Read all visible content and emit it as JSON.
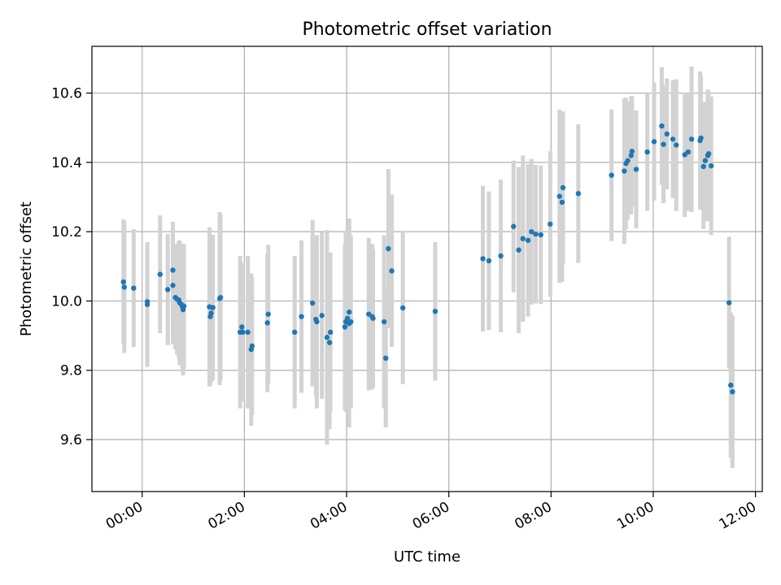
{
  "chart_data": {
    "type": "scatter",
    "title": "Photometric offset variation",
    "xlabel": "UTC time",
    "ylabel": "Photometric offset",
    "x_unit": "hours UTC",
    "xlim": [
      "23:01",
      "12:08"
    ],
    "ylim": [
      9.45,
      10.735
    ],
    "xticks": [
      "00:00",
      "02:00",
      "04:00",
      "06:00",
      "08:00",
      "10:00",
      "12:00"
    ],
    "yticks": [
      9.6,
      9.8,
      10.0,
      10.2,
      10.4,
      10.6
    ],
    "grid": true,
    "legend": "none",
    "marker_color": "#1f77b4",
    "errorbar_color": "#d3d3d3",
    "series": [
      {
        "x": [
          "23:38",
          "23:39",
          "23:50",
          "00:06",
          "00:06",
          "00:21",
          "00:30",
          "00:36",
          "00:36",
          "00:39",
          "00:41",
          "00:43",
          "00:44",
          "00:46",
          "00:47",
          "00:48",
          "00:49",
          "01:19",
          "01:20",
          "01:21",
          "01:23",
          "01:31",
          "01:32",
          "01:55",
          "01:57",
          "01:58",
          "02:04",
          "02:08",
          "02:09",
          "02:27",
          "02:28",
          "02:59",
          "03:07",
          "03:20",
          "03:24",
          "03:25",
          "03:31",
          "03:37",
          "03:40",
          "03:41",
          "03:58",
          "03:59",
          "04:01",
          "04:03",
          "04:03",
          "04:05",
          "04:26",
          "04:30",
          "04:31",
          "04:44",
          "04:46",
          "04:49",
          "04:53",
          "05:06",
          "05:44",
          "06:40",
          "06:47",
          "07:01",
          "07:16",
          "07:22",
          "07:27",
          "07:33",
          "07:37",
          "07:42",
          "07:48",
          "07:59",
          "08:10",
          "08:13",
          "08:14",
          "08:32",
          "09:11",
          "09:26",
          "09:28",
          "09:30",
          "09:34",
          "09:35",
          "09:40",
          "09:53",
          "10:01",
          "10:10",
          "10:12",
          "10:16",
          "10:23",
          "10:27",
          "10:37",
          "10:41",
          "10:45",
          "10:55",
          "10:56",
          "10:59",
          "11:01",
          "11:04",
          "11:05",
          "11:08",
          "11:29",
          "11:31",
          "11:33"
        ],
        "y": [
          10.055,
          10.04,
          10.037,
          9.998,
          9.99,
          10.077,
          10.033,
          10.045,
          10.089,
          10.01,
          10.005,
          10.003,
          9.995,
          9.99,
          9.985,
          9.975,
          9.985,
          9.983,
          9.955,
          9.965,
          9.981,
          10.007,
          10.01,
          9.91,
          9.925,
          9.91,
          9.91,
          9.86,
          9.87,
          9.937,
          9.962,
          9.91,
          9.955,
          9.994,
          9.947,
          9.94,
          9.958,
          9.895,
          9.88,
          9.91,
          9.925,
          9.94,
          9.95,
          9.968,
          9.935,
          9.94,
          9.962,
          9.955,
          9.95,
          9.94,
          9.835,
          10.151,
          10.087,
          9.98,
          9.97,
          10.122,
          10.116,
          10.13,
          10.215,
          10.147,
          10.18,
          10.175,
          10.2,
          10.193,
          10.191,
          10.222,
          10.302,
          10.285,
          10.327,
          10.31,
          10.363,
          10.375,
          10.397,
          10.405,
          10.42,
          10.432,
          10.38,
          10.43,
          10.46,
          10.505,
          10.452,
          10.482,
          10.467,
          10.45,
          10.422,
          10.43,
          10.467,
          10.463,
          10.47,
          10.388,
          10.405,
          10.42,
          10.425,
          10.39,
          9.995,
          9.757,
          9.738
        ],
        "err": [
          0.18,
          0.19,
          0.17,
          0.17,
          0.18,
          0.17,
          0.16,
          0.17,
          0.14,
          0.15,
          0.16,
          0.17,
          0.18,
          0.17,
          0.18,
          0.19,
          0.18,
          0.23,
          0.2,
          0.2,
          0.21,
          0.25,
          0.24,
          0.22,
          0.18,
          0.2,
          0.22,
          0.22,
          0.2,
          0.2,
          0.2,
          0.22,
          0.22,
          0.24,
          0.22,
          0.25,
          0.24,
          0.31,
          0.25,
          0.23,
          0.24,
          0.26,
          0.26,
          0.27,
          0.3,
          0.25,
          0.22,
          0.21,
          0.2,
          0.25,
          0.2,
          0.23,
          0.22,
          0.22,
          0.2,
          0.21,
          0.2,
          0.22,
          0.19,
          0.24,
          0.24,
          0.22,
          0.21,
          0.2,
          0.2,
          0.21,
          0.25,
          0.23,
          0.22,
          0.2,
          0.19,
          0.21,
          0.19,
          0.17,
          0.17,
          0.16,
          0.17,
          0.17,
          0.17,
          0.17,
          0.17,
          0.16,
          0.17,
          0.19,
          0.18,
          0.17,
          0.21,
          0.2,
          0.18,
          0.18,
          0.17,
          0.19,
          0.18,
          0.2,
          0.19,
          0.21,
          0.22
        ]
      }
    ]
  }
}
